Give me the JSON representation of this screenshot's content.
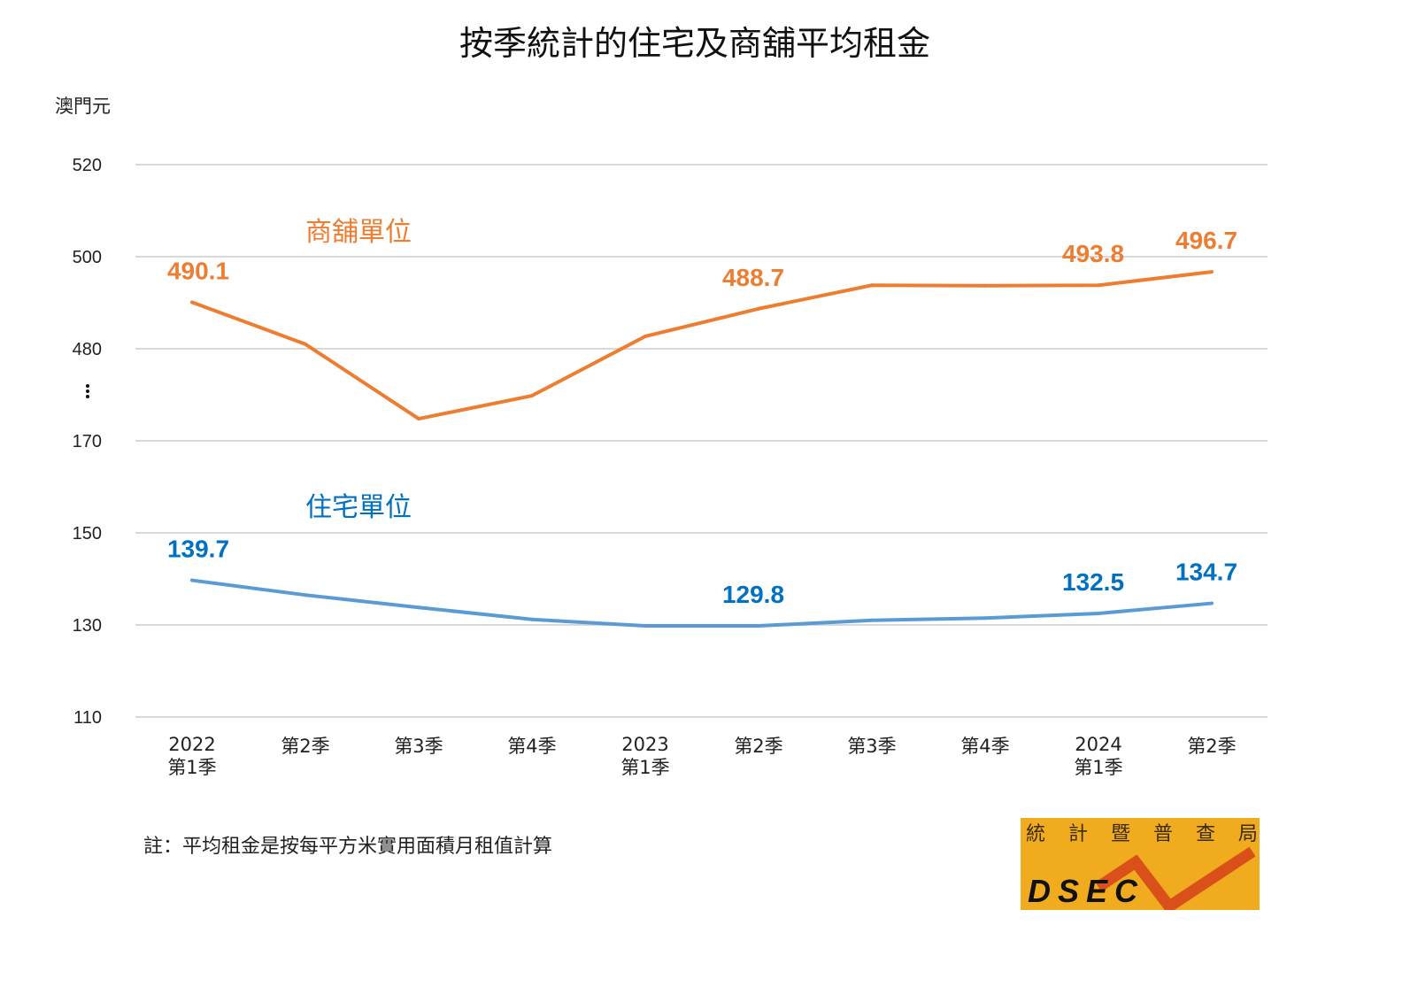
{
  "chart_data": {
    "type": "line",
    "title": "按季統計的住宅及商舖平均租金",
    "ylabel": "澳門元",
    "y_axis_break": true,
    "yticks": [
      520,
      500,
      480,
      170,
      150,
      130,
      110
    ],
    "ylim_upper": [
      480,
      520
    ],
    "ylim_lower": [
      110,
      170
    ],
    "grid": true,
    "categories": [
      [
        "2022",
        "第1季"
      ],
      [
        "第2季"
      ],
      [
        "第3季"
      ],
      [
        "第4季"
      ],
      [
        "2023",
        "第1季"
      ],
      [
        "第2季"
      ],
      [
        "第3季"
      ],
      [
        "第4季"
      ],
      [
        "2024",
        "第1季"
      ],
      [
        "第2季"
      ]
    ],
    "series": [
      {
        "name": "商舖單位",
        "color": "#ed7d31",
        "label_color": "#ed7d31",
        "values": [
          490.1,
          481.0,
          464.8,
          469.8,
          482.7,
          488.7,
          493.8,
          493.7,
          493.8,
          496.7
        ],
        "data_labels": [
          {
            "index": 0,
            "text": "490.1"
          },
          {
            "index": 5,
            "text": "488.7"
          },
          {
            "index": 8,
            "text": "493.8"
          },
          {
            "index": 9,
            "text": "496.7"
          }
        ]
      },
      {
        "name": "住宅單位",
        "color": "#5b9bd5",
        "label_color": "#0070c0",
        "values": [
          139.7,
          136.5,
          133.8,
          131.2,
          129.8,
          129.8,
          131.0,
          131.5,
          132.5,
          134.7
        ],
        "data_labels": [
          {
            "index": 0,
            "text": "139.7"
          },
          {
            "index": 5,
            "text": "129.8"
          },
          {
            "index": 8,
            "text": "132.5"
          },
          {
            "index": 9,
            "text": "134.7"
          }
        ]
      }
    ],
    "note": "註：平均租金是按每平方米實用面積月租值計算"
  },
  "logo": {
    "chinese": [
      "統",
      "計",
      "暨",
      "普",
      "查",
      "局"
    ],
    "english": "DSEC",
    "bg_color": "#f0ac1e",
    "accent_color": "#d9501a"
  }
}
